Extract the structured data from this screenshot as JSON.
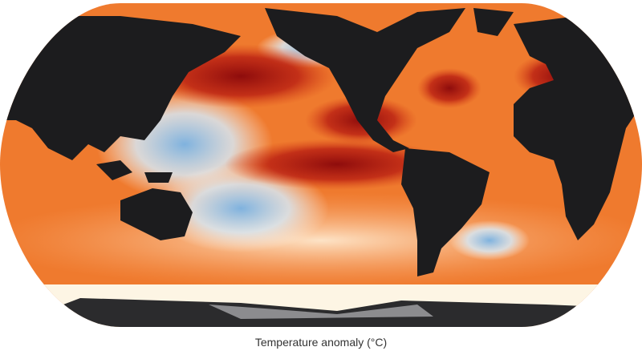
{
  "caption": "Temperature anomaly (°C)"
}
